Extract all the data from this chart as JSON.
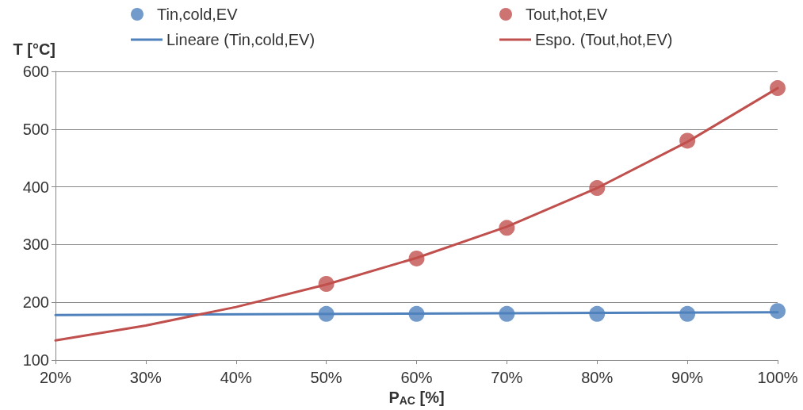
{
  "chart_data": {
    "type": "scatter",
    "xlabel": "P$_{AC}$ [%]",
    "ylabel": "T [°C]",
    "xlim": [
      20,
      100
    ],
    "xticks": [
      {
        "value": 20,
        "label": "20%"
      },
      {
        "value": 30,
        "label": "30%"
      },
      {
        "value": 40,
        "label": "40%"
      },
      {
        "value": 50,
        "label": "50%"
      },
      {
        "value": 60,
        "label": "60%"
      },
      {
        "value": 70,
        "label": "70%"
      },
      {
        "value": 80,
        "label": "80%"
      },
      {
        "value": 90,
        "label": "90%"
      },
      {
        "value": 100,
        "label": "100%"
      }
    ],
    "ylim": [
      100,
      600
    ],
    "yticks": [
      100,
      200,
      300,
      400,
      500,
      600
    ],
    "grid": "y",
    "legend": "top",
    "series": [
      {
        "name": "Tin,cold,EV",
        "marker": "circle",
        "color": "#4f81bd",
        "x": [
          50,
          60,
          70,
          80,
          90,
          100
        ],
        "values": [
          180,
          180,
          180,
          180,
          180,
          185
        ]
      },
      {
        "name": "Tout,hot,EV",
        "marker": "circle",
        "color": "#c0504d",
        "x": [
          50,
          60,
          70,
          80,
          90,
          100
        ],
        "values": [
          232,
          276,
          329,
          398,
          480,
          571
        ]
      },
      {
        "name": "Lineare (Tin,cold,EV)",
        "type": "line",
        "marker": "none",
        "color": "#4f81bd",
        "x": [
          20,
          100
        ],
        "values": [
          178,
          183
        ]
      },
      {
        "name": "Espo. (Tout,hot,EV)",
        "type": "line",
        "marker": "none",
        "color": "#c0504d",
        "x": [
          20,
          30,
          40,
          50,
          60,
          70,
          80,
          90,
          100
        ],
        "values": [
          134,
          160,
          192,
          231,
          277,
          331,
          398,
          478,
          571
        ]
      }
    ]
  }
}
